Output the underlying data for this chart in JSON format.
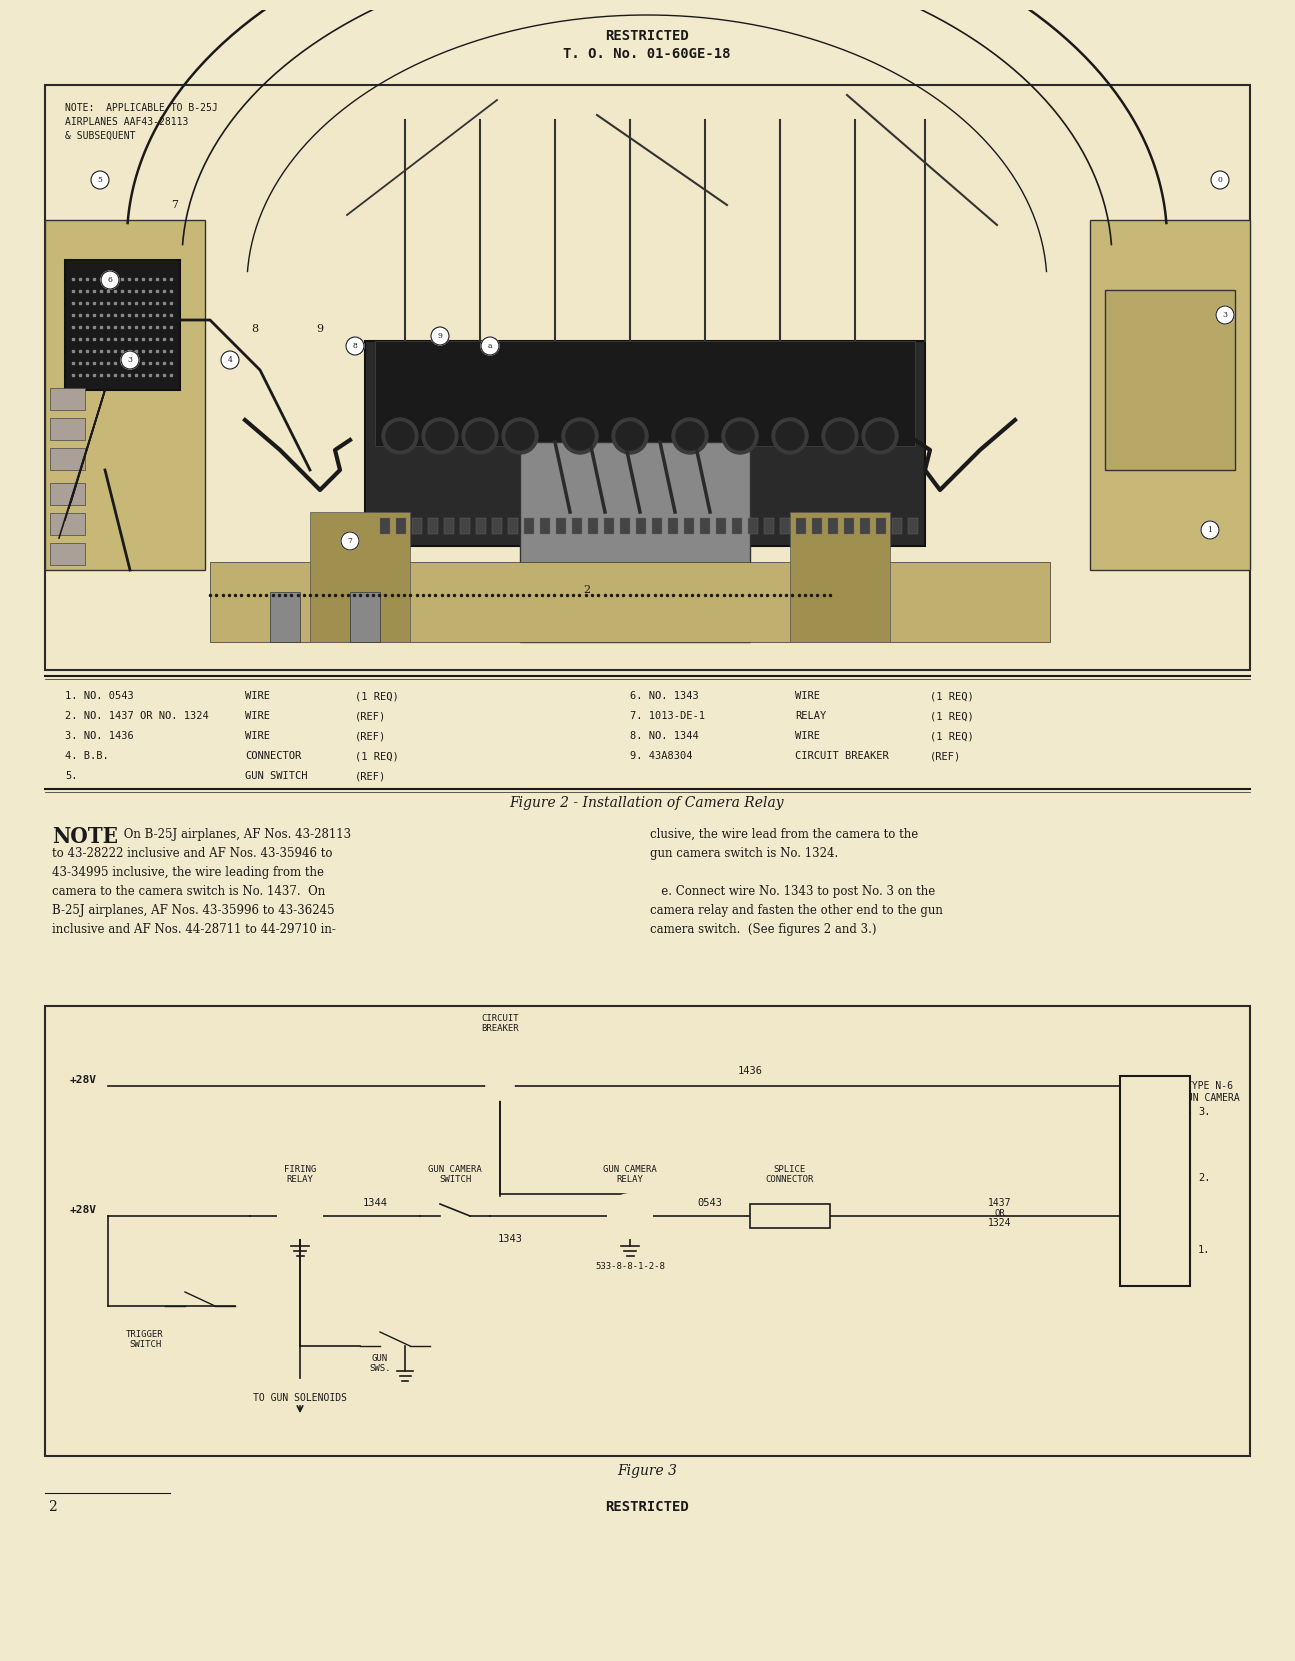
{
  "bg_color": "#f0e8c8",
  "page_bg": "#f2eacc",
  "text_color": "#1a1a1a",
  "header_line1": "RESTRICTED",
  "header_line2": "T. O. No. 01-60GE-18",
  "fig2_caption": "Figure 2 - Installation of Camera Relay",
  "fig3_caption": "Figure 3",
  "footer_restricted": "RESTRICTED",
  "page_number": "2",
  "parts_left": [
    [
      "1. NO. 0543",
      "WIRE",
      "(1 REQ)"
    ],
    [
      "2. NO. 1437 OR NO. 1324",
      "WIRE",
      "(REF)"
    ],
    [
      "3. NO. 1436",
      "WIRE",
      "(REF)"
    ],
    [
      "4. B.B.",
      "CONNECTOR",
      "(1 REQ)"
    ],
    [
      "5.",
      "GUN SWITCH",
      "(REF)"
    ]
  ],
  "parts_right": [
    [
      "6. NO. 1343",
      "WIRE",
      "(1 REQ)"
    ],
    [
      "7. 1013-DE-1",
      "RELAY",
      "(1 REQ)"
    ],
    [
      "8. NO. 1344",
      "WIRE",
      "(1 REQ)"
    ],
    [
      "9. 43A8304",
      "CIRCUIT BREAKER",
      "(REF)"
    ],
    [
      "",
      "",
      ""
    ]
  ],
  "note_bold": "NOTE",
  "note_left_lines": [
    " On B-25J airplanes, AF Nos. 43-28113",
    "to 43-28222 inclusive and AF Nos. 43-35946 to",
    "43-34995 inclusive, the wire leading from the",
    "camera to the camera switch is No. 1437.  On",
    "B-25J airplanes, AF Nos. 43-35996 to 43-36245",
    "inclusive and AF Nos. 44-28711 to 44-29710 in-"
  ],
  "note_right_lines": [
    "clusive, the wire lead from the camera to the",
    "gun camera switch is No. 1324.",
    "",
    "   e. Connect wire No. 1343 to post No. 3 on the",
    "camera relay and fasten the other end to the gun",
    "camera switch.  (See figures 2 and 3.)"
  ],
  "fig2_note": "NOTE:  APPLICABLE TO B-25J\nAIRPLANES AAF43-28113\n& SUBSEQUENT",
  "circuit_labels": {
    "plus28v_top": "+28V",
    "plus28v_mid": "+28V",
    "circuit_breaker": "CIRCUIT\nBREAKER",
    "wire_1436": "1436",
    "gun_camera_switch": "GUN CAMERA\nSWITCH",
    "gun_camera_relay": "GUN CAMERA\nRELAY",
    "wire_1344": "1344",
    "wire_1343": "1343",
    "wire_0543": "0543",
    "splice_connector": "SPLICE\nCONNECTOR",
    "wire_1437_1324": "1437\nOR\n1324",
    "type_n6": "TYPE N-6\nGUN CAMERA",
    "firing_relay": "FIRING\nRELAY",
    "trigger_switch": "TRIGGER\nSWITCH",
    "gun_sws": "GUN\nSWS.",
    "relay_part": "533-8-8-1-2-8",
    "to_gun_solenoids": "TO GUN SOLENOIDS",
    "post1": "1.",
    "post2": "2.",
    "post3": "3."
  }
}
